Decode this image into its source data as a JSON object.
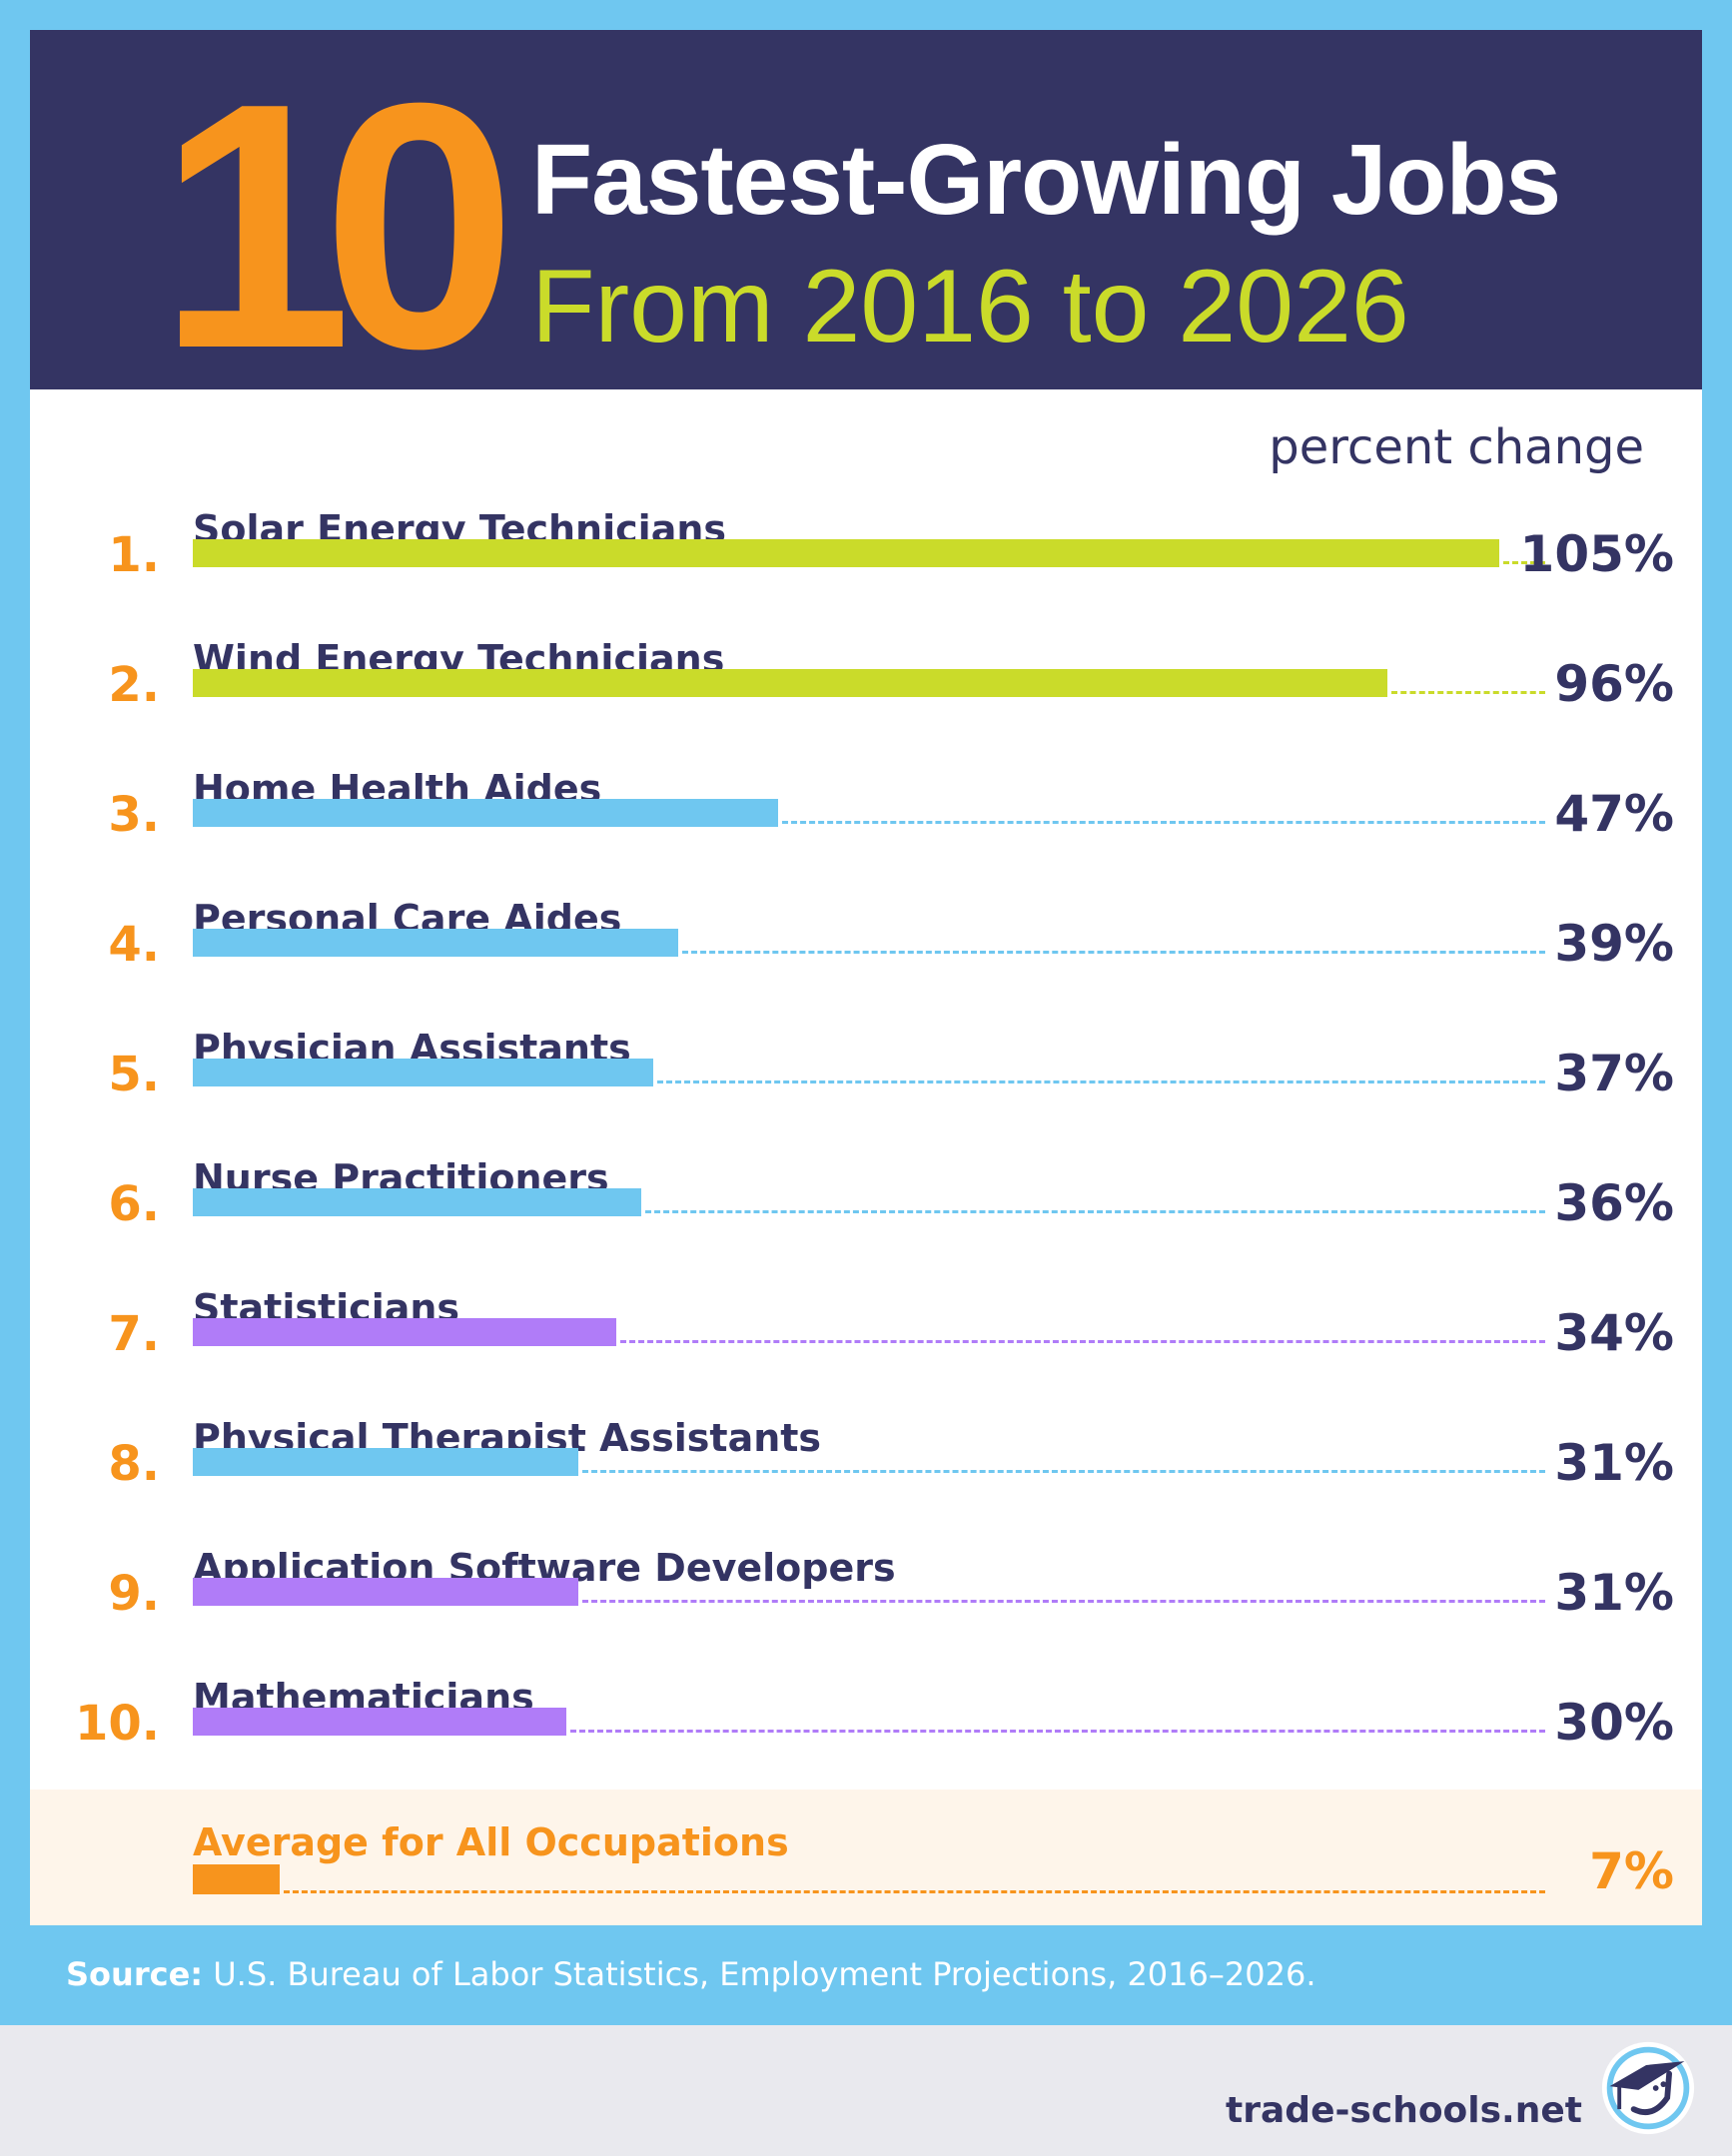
{
  "header": {
    "number": "10",
    "title": "Fastest-Growing Jobs",
    "subtitle": "From 2016 to 2026"
  },
  "chart_data": {
    "type": "bar",
    "orientation": "horizontal",
    "unit_label": "percent change",
    "categories": [
      "Solar Energy Technicians",
      "Wind Energy Technicians",
      "Home Health Aides",
      "Personal Care Aides",
      "Physician Assistants",
      "Nurse Practitioners",
      "Statisticians",
      "Physical Therapist Assistants",
      "Application Software Developers",
      "Mathematicians"
    ],
    "ranks": [
      "1.",
      "2.",
      "3.",
      "4.",
      "5.",
      "6.",
      "7.",
      "8.",
      "9.",
      "10."
    ],
    "values": [
      105,
      96,
      47,
      39,
      37,
      36,
      34,
      31,
      31,
      30
    ],
    "value_labels": [
      "105%",
      "96%",
      "47%",
      "39%",
      "37%",
      "36%",
      "34%",
      "31%",
      "31%",
      "30%"
    ],
    "colors": [
      "#cadb2a",
      "#cadb2a",
      "#6fc7f0",
      "#6fc7f0",
      "#6fc7f0",
      "#6fc7f0",
      "#b07cf8",
      "#6fc7f0",
      "#b07cf8",
      "#b07cf8"
    ],
    "average": {
      "label": "Average for All Occupations",
      "value": 7,
      "value_label": "7%",
      "color": "#f7941d"
    }
  },
  "source": {
    "prefix": "Source:",
    "text": " U.S. Bureau of Labor Statistics, Employment Projections, 2016–2026."
  },
  "brand": {
    "name": "trade-schools.net"
  }
}
